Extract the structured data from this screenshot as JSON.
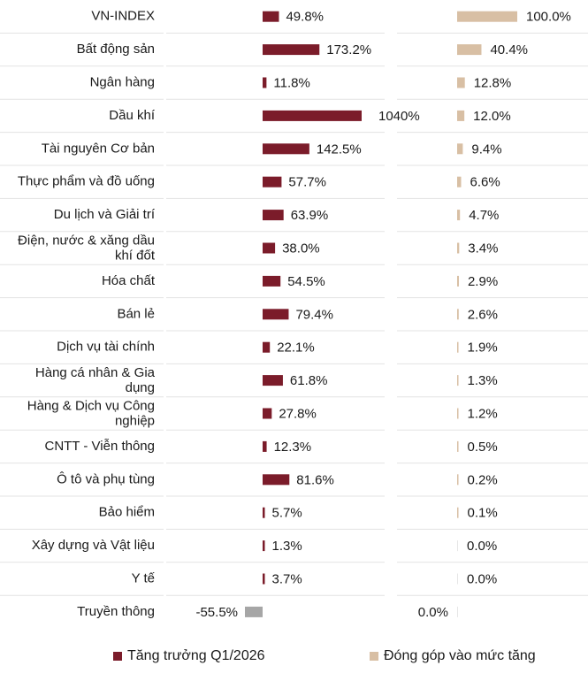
{
  "chart_data": {
    "type": "bar",
    "categories": [
      "VN-INDEX",
      "Bất động sản",
      "Ngân hàng",
      "Dầu khí",
      "Tài nguyên Cơ bản",
      "Thực phẩm và đồ uống",
      "Du lịch và Giải trí",
      "Điện, nước & xăng dầu khí đốt",
      "Hóa chất",
      "Bán lẻ",
      "Dịch vụ tài chính",
      "Hàng cá nhân & Gia dụng",
      "Hàng & Dịch vụ Công nghiệp",
      "CNTT - Viễn thông",
      "Ô tô và phụ tùng",
      "Bảo hiểm",
      "Xây dựng và Vật liệu",
      "Y tế",
      "Truyền thông"
    ],
    "category_lines": [
      [
        "VN-INDEX"
      ],
      [
        "Bất động sản"
      ],
      [
        "Ngân hàng"
      ],
      [
        "Dầu khí"
      ],
      [
        "Tài nguyên Cơ bản"
      ],
      [
        "Thực phẩm và đồ uống"
      ],
      [
        "Du lịch và Giải trí"
      ],
      [
        "Điện, nước & xăng dầu",
        "khí đốt"
      ],
      [
        "Hóa chất"
      ],
      [
        "Bán lẻ"
      ],
      [
        "Dịch vụ tài chính"
      ],
      [
        "Hàng cá nhân & Gia",
        "dụng"
      ],
      [
        "Hàng & Dịch vụ Công",
        "nghiệp"
      ],
      [
        "CNTT - Viễn thông"
      ],
      [
        "Ô tô và phụ tùng"
      ],
      [
        "Bảo hiểm"
      ],
      [
        "Xây dựng và Vật liệu"
      ],
      [
        "Y tế"
      ],
      [
        "Truyền thông"
      ]
    ],
    "series": [
      {
        "name": "Tăng trưởng Q1/2026",
        "values": [
          49.8,
          173.2,
          11.8,
          1040,
          142.5,
          57.7,
          63.9,
          38.0,
          54.5,
          79.4,
          22.1,
          61.8,
          27.8,
          12.3,
          81.6,
          5.7,
          1.3,
          3.7,
          -55.5
        ],
        "labels": [
          "49.8%",
          "173.2%",
          "11.8%",
          "1040%",
          "142.5%",
          "57.7%",
          "63.9%",
          "38.0%",
          "54.5%",
          "79.4%",
          "22.1%",
          "61.8%",
          "27.8%",
          "12.3%",
          "81.6%",
          "5.7%",
          "1.3%",
          "3.7%",
          "-55.5%"
        ],
        "color": "#7b1c2a",
        "negative_color": "#a6a6a6"
      },
      {
        "name": "Đóng góp vào mức tăng",
        "values": [
          100.0,
          40.4,
          12.8,
          12.0,
          9.4,
          6.6,
          4.7,
          3.4,
          2.9,
          2.6,
          1.9,
          1.3,
          1.2,
          0.5,
          0.2,
          0.1,
          0.0,
          0.0,
          0.0
        ],
        "labels": [
          "100.0%",
          "40.4%",
          "12.8%",
          "12.0%",
          "9.4%",
          "6.6%",
          "4.7%",
          "3.4%",
          "2.9%",
          "2.6%",
          "1.9%",
          "1.3%",
          "1.2%",
          "0.5%",
          "0.2%",
          "0.1%",
          "0.0%",
          "0.0%",
          "0.0%"
        ],
        "color": "#d8bfa4"
      }
    ],
    "legend_position": "bottom",
    "grid": false,
    "separator_color": "#e3e3e3",
    "category_label_color": "#1a1a1a",
    "highlight_category_label_color": "#3a3a3a"
  },
  "legend": {
    "growth_label": "Tăng trưởng Q1/2026",
    "contribution_label": "Đóng góp vào mức tăng"
  }
}
